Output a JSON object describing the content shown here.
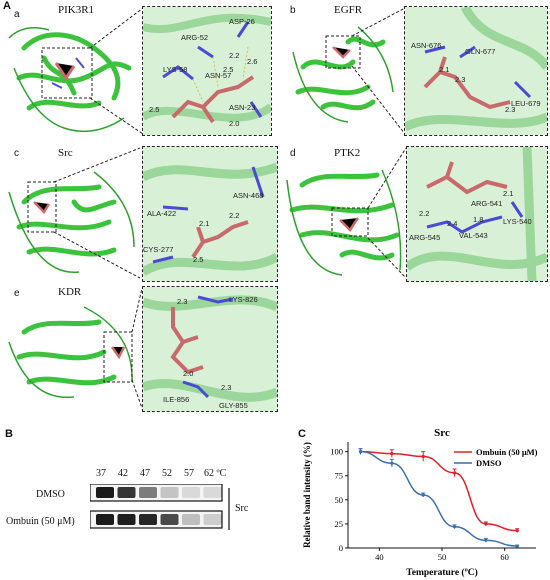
{
  "panels": {
    "A": {
      "letter": "A",
      "sub": [
        {
          "letter": "a",
          "protein": "PIK3R1",
          "residues": [
            "ARG-52",
            "ASP-26",
            "LYS-58",
            "ASN-57",
            "ASN-23"
          ],
          "distances": [
            "2.2",
            "2.6",
            "2.5",
            "2.5",
            "2.0"
          ]
        },
        {
          "letter": "b",
          "protein": "EGFR",
          "residues": [
            "ASN-676",
            "GLN-677",
            "LEU-679"
          ],
          "distances": [
            "2.1",
            "2.3",
            "2.3"
          ]
        },
        {
          "letter": "c",
          "protein": "Src",
          "residues": [
            "ASN-468",
            "ALA-422",
            "CYS-277"
          ],
          "distances": [
            "2.1",
            "2.2",
            "2.5"
          ]
        },
        {
          "letter": "d",
          "protein": "PTK2",
          "residues": [
            "ARG-541",
            "LYS-540",
            "ARG-545",
            "VAL-543"
          ],
          "distances": [
            "2.1",
            "2.2",
            "2.4",
            "1.8"
          ]
        },
        {
          "letter": "e",
          "protein": "KDR",
          "residues": [
            "LYS-826",
            "ILE-856",
            "GLY-855"
          ],
          "distances": [
            "2.3",
            "2.0",
            "2.3"
          ]
        }
      ]
    },
    "B": {
      "letter": "B",
      "temperatures": [
        "37",
        "42",
        "47",
        "52",
        "57",
        "62 ºC"
      ],
      "rows": [
        "DMSO",
        "Ombuin (50 μM)"
      ],
      "target": "Src",
      "colors": {
        "band": "#1a1a1a"
      }
    },
    "C": {
      "letter": "C"
    }
  },
  "chart_data": {
    "type": "line",
    "title": "Src",
    "xlabel": "Temperature (ºC)",
    "ylabel": "Relative band intensity (%)",
    "xlim": [
      35,
      65
    ],
    "ylim": [
      0,
      110
    ],
    "xticks": [
      "40",
      "50",
      "60"
    ],
    "yticks": [
      "0",
      "25",
      "50",
      "75",
      "100"
    ],
    "x": [
      37,
      42,
      47,
      52,
      57,
      62
    ],
    "series": [
      {
        "name": "Ombuin (50 μM)",
        "color": "#e0202a",
        "values": [
          100,
          98,
          95,
          78,
          25,
          18
        ],
        "err": [
          3,
          4,
          5,
          4,
          2,
          2
        ]
      },
      {
        "name": "DMSO",
        "color": "#3a6fb0",
        "values": [
          100,
          88,
          55,
          22,
          8,
          2
        ],
        "err": [
          3,
          4,
          2,
          2,
          2,
          1
        ]
      }
    ],
    "legend": "top-right",
    "grid": false
  }
}
